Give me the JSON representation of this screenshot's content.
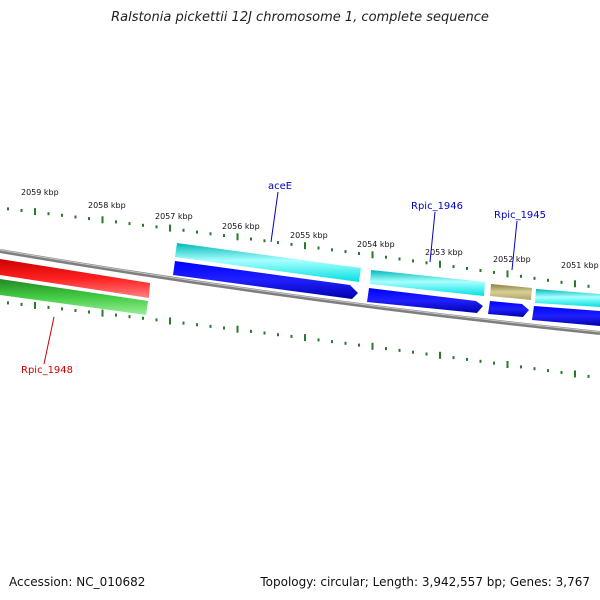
{
  "title": "Ralstonia pickettii 12J chromosome 1, complete sequence",
  "accession": "Accession: NC_010682",
  "topology": "Topology: circular; Length: 3,942,557 bp; Genes: 3,767",
  "ruler_labels": [
    "2059 kbp",
    "2058 kbp",
    "2057 kbp",
    "2056 kbp",
    "2055 kbp",
    "2054 kbp",
    "2053 kbp",
    "2052 kbp",
    "2051 kbp"
  ],
  "gene_labels": [
    {
      "text": "aceE",
      "color": "#0000cc"
    },
    {
      "text": "Rpic_1946",
      "color": "#0000cc"
    },
    {
      "text": "Rpic_1945",
      "color": "#0000cc"
    },
    {
      "text": "Rpic_1948",
      "color": "#cc0000"
    }
  ],
  "colors": {
    "backbone": "#808080",
    "cds_forward": "#0000ee",
    "rna_cyan": "#00e5e5",
    "khaki": "#b8ad6a",
    "red_track": "#ee0000",
    "green_track": "#33bb33",
    "tick": "#2a7a2a"
  }
}
